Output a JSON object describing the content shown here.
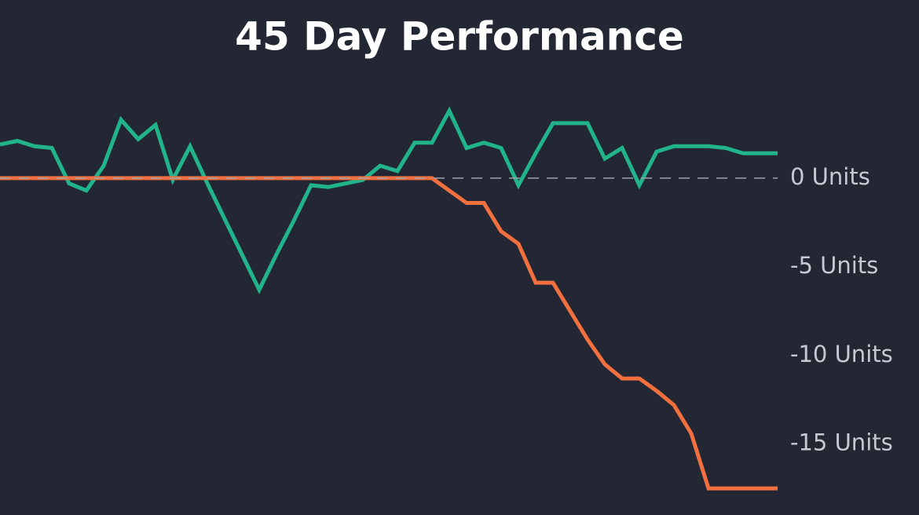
{
  "chart_data": {
    "type": "line",
    "title": "45 Day Performance",
    "categories": [
      null,
      null,
      null,
      null,
      null,
      null,
      null,
      null,
      null,
      null,
      null,
      null,
      null,
      null,
      null,
      null,
      null,
      null,
      null,
      null,
      null,
      null,
      null,
      null,
      null,
      null,
      null,
      null,
      null,
      null,
      null,
      null,
      null,
      null,
      null,
      null,
      null,
      null,
      null,
      null,
      null,
      null,
      null,
      null,
      null,
      null
    ],
    "series": [
      {
        "color": "#21b48b",
        "values": [
          1.9,
          2.1,
          1.8,
          1.7,
          -0.3,
          -0.7,
          0.7,
          3.3,
          2.2,
          3.0,
          -0.1,
          1.8,
          -0.3,
          -2.3,
          -4.3,
          -6.3,
          -4.3,
          -2.4,
          -0.4,
          -0.5,
          -0.3,
          -0.1,
          0.7,
          0.4,
          2.0,
          2.0,
          3.8,
          1.7,
          2.0,
          1.7,
          -0.4,
          1.4,
          3.1,
          3.1,
          3.1,
          1.1,
          1.7,
          -0.4,
          1.5,
          1.8,
          1.8,
          1.8,
          1.7,
          1.4,
          1.4,
          1.4
        ]
      },
      {
        "color": "#f2703f",
        "values": [
          0,
          0,
          0,
          0,
          0,
          0,
          0,
          0,
          0,
          0,
          0,
          0,
          0,
          0,
          0,
          0,
          0,
          0,
          0,
          0,
          0,
          0,
          0,
          0,
          0,
          0,
          -0.7,
          -1.4,
          -1.4,
          -3.0,
          -3.7,
          -5.9,
          -5.9,
          -7.5,
          -9.1,
          -10.5,
          -11.3,
          -11.3,
          -12.0,
          -12.8,
          -14.4,
          -17.5,
          -17.5,
          -17.5,
          -17.5,
          -17.5
        ]
      }
    ],
    "ylim": [
      -19,
      4.5
    ],
    "yticks": [
      {
        "value": 0,
        "label": "0 Units"
      },
      {
        "value": -5,
        "label": "-5 Units"
      },
      {
        "value": -10,
        "label": "-10 Units"
      },
      {
        "value": -15,
        "label": "-15 Units"
      }
    ],
    "zero_line": true
  }
}
